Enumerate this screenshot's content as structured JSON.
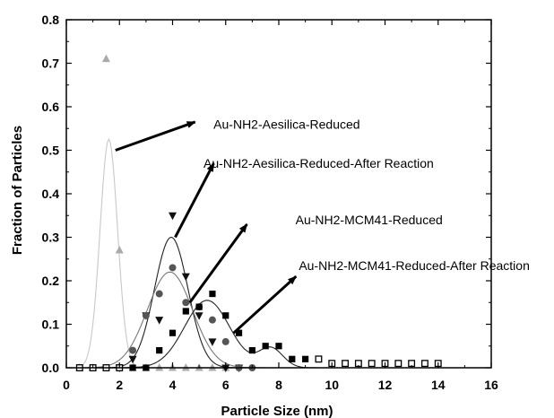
{
  "chart_data": {
    "type": "scatter",
    "title": "",
    "xlabel": "Particle Size (nm)",
    "ylabel": "Fraction of Particles",
    "xlim": [
      0,
      16
    ],
    "ylim": [
      0,
      0.8
    ],
    "xticks": [
      "0",
      "2",
      "4",
      "6",
      "8",
      "10",
      "12",
      "14",
      "16"
    ],
    "yticks": [
      "0.0",
      "0.1",
      "0.2",
      "0.3",
      "0.4",
      "0.5",
      "0.6",
      "0.7",
      "0.8"
    ],
    "grid": false,
    "legend": "none",
    "series": [
      {
        "marker": "triangle-up",
        "color": "#aaaaaa",
        "points": [
          [
            0.5,
            0.0
          ],
          [
            1.0,
            0.0
          ],
          [
            1.5,
            0.71
          ],
          [
            2.0,
            0.27
          ],
          [
            2.5,
            0.0
          ],
          [
            3.0,
            0.0
          ],
          [
            3.5,
            0.0
          ],
          [
            4.0,
            0.0
          ],
          [
            4.5,
            0.0
          ],
          [
            5.0,
            0.0
          ],
          [
            5.5,
            0.0
          ],
          [
            6.0,
            0.0
          ]
        ],
        "fit": {
          "center": 1.6,
          "amplitude": 0.525,
          "sigma": 0.33,
          "color": "#c8c8c8"
        }
      },
      {
        "marker": "triangle-down",
        "color": "#111111",
        "points": [
          [
            2.0,
            0.0
          ],
          [
            2.5,
            0.02
          ],
          [
            3.0,
            0.12
          ],
          [
            3.5,
            0.11
          ],
          [
            4.0,
            0.35
          ],
          [
            4.5,
            0.21
          ],
          [
            5.0,
            0.12
          ],
          [
            5.5,
            0.06
          ],
          [
            6.0,
            0.0
          ],
          [
            6.5,
            0.0
          ]
        ],
        "fit": {
          "center": 3.95,
          "amplitude": 0.3,
          "sigma": 0.63,
          "color": "#222222"
        }
      },
      {
        "marker": "circle",
        "color": "#555555",
        "points": [
          [
            2.0,
            0.0
          ],
          [
            2.5,
            0.04
          ],
          [
            3.0,
            0.12
          ],
          [
            3.5,
            0.17
          ],
          [
            4.0,
            0.23
          ],
          [
            4.5,
            0.15
          ],
          [
            5.0,
            0.14
          ],
          [
            5.5,
            0.11
          ],
          [
            6.0,
            0.06
          ],
          [
            6.5,
            0.0
          ],
          [
            7.0,
            0.0
          ]
        ],
        "fit": {
          "center": 3.9,
          "amplitude": 0.22,
          "sigma": 0.85,
          "color": "#777777"
        }
      },
      {
        "marker": "square-filled",
        "color": "#000000",
        "points": [
          [
            2.5,
            0.0
          ],
          [
            3.0,
            0.0
          ],
          [
            3.5,
            0.04
          ],
          [
            4.0,
            0.08
          ],
          [
            4.5,
            0.13
          ],
          [
            5.0,
            0.14
          ],
          [
            5.5,
            0.17
          ],
          [
            6.0,
            0.12
          ],
          [
            6.5,
            0.08
          ],
          [
            7.0,
            0.04
          ],
          [
            7.5,
            0.05
          ],
          [
            8.0,
            0.05
          ],
          [
            8.5,
            0.02
          ],
          [
            9.0,
            0.02
          ]
        ],
        "fit": {
          "components": [
            {
              "center": 5.3,
              "amplitude": 0.155,
              "sigma": 0.85
            },
            {
              "center": 7.7,
              "amplitude": 0.045,
              "sigma": 0.45
            }
          ],
          "color": "#222222"
        }
      },
      {
        "marker": "square-open",
        "color": "#000000",
        "points": [
          [
            0.5,
            0.0
          ],
          [
            1.0,
            0.0
          ],
          [
            1.5,
            0.0
          ],
          [
            2.0,
            0.0
          ],
          [
            9.5,
            0.02
          ],
          [
            10.0,
            0.01
          ],
          [
            10.5,
            0.01
          ],
          [
            11.0,
            0.01
          ],
          [
            11.5,
            0.01
          ],
          [
            12.0,
            0.01
          ],
          [
            12.5,
            0.01
          ],
          [
            13.0,
            0.01
          ],
          [
            13.5,
            0.01
          ],
          [
            14.0,
            0.01
          ]
        ]
      }
    ],
    "annotations": [
      {
        "text": "Au-NH2-Aesilica-Reduced",
        "from": [
          1.85,
          0.5
        ],
        "to": [
          4.85,
          0.565
        ],
        "label_at": [
          8.3,
          0.56
        ]
      },
      {
        "text": "Au-NH2-Aesilica-Reduced-After Reaction",
        "from": [
          4.1,
          0.3
        ],
        "to": [
          5.55,
          0.47
        ],
        "label_at": [
          9.5,
          0.47
        ]
      },
      {
        "text": "Au-NH2-MCM41-Reduced",
        "from": [
          4.65,
          0.15
        ],
        "to": [
          6.8,
          0.33
        ],
        "label_at": [
          11.4,
          0.34
        ]
      },
      {
        "text": "Au-NH2-MCM41-Reduced-After Reaction",
        "from": [
          6.3,
          0.08
        ],
        "to": [
          8.65,
          0.21
        ],
        "label_at": [
          13.1,
          0.235
        ]
      }
    ]
  }
}
